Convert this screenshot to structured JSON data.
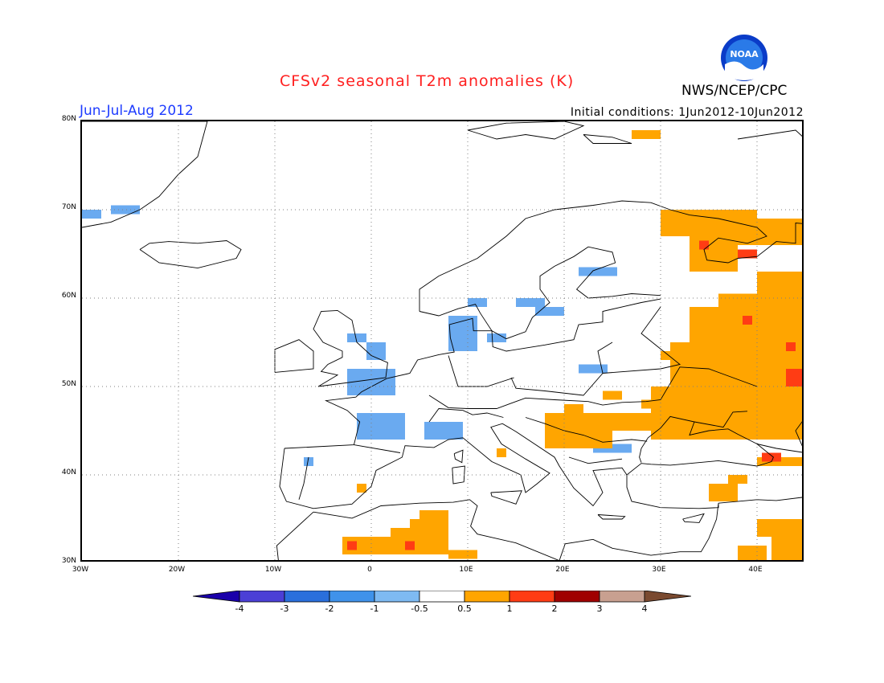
{
  "header": {
    "title": "CFSv2 seasonal T2m anomalies (K)",
    "title_color": "#ff2020",
    "agency": "NWS/NCEP/CPC",
    "season": "Jun-Jul-Aug 2012",
    "initial_conditions": "Initial conditions: 1Jun2012-10Jun2012",
    "logo_text": "NOAA"
  },
  "map": {
    "region": "Europe",
    "lon_range": [
      -30,
      45
    ],
    "lat_range": [
      30,
      80
    ],
    "y_ticks": [
      "80N",
      "70N",
      "60N",
      "50N",
      "40N",
      "30N"
    ],
    "x_ticks": [
      "30W",
      "20W",
      "10W",
      "0",
      "10E",
      "20E",
      "30E",
      "40E"
    ],
    "gridlines": true
  },
  "colorbar": {
    "labels": [
      "-4",
      "-3",
      "-2",
      "-1",
      "-0.5",
      "0.5",
      "1",
      "2",
      "3",
      "4"
    ],
    "colors": [
      "#1a00aa",
      "#4b3fd6",
      "#2a6fdc",
      "#3f92ea",
      "#7ebaf2",
      "#ffffff",
      "#ffa500",
      "#ff3c14",
      "#a00000",
      "#c8a090",
      "#7a4a30"
    ]
  },
  "anomalies": {
    "cool": [
      [
        -30,
        69,
        2,
        1
      ],
      [
        -27,
        69.5,
        3,
        1
      ],
      [
        -2.5,
        55,
        2,
        1
      ],
      [
        -0.5,
        53,
        2,
        2
      ],
      [
        -2.5,
        49,
        5,
        3
      ],
      [
        -1.5,
        44,
        5,
        3
      ],
      [
        5.5,
        44,
        4,
        2
      ],
      [
        8,
        54,
        3,
        2
      ],
      [
        8,
        56,
        3,
        2
      ],
      [
        10,
        59,
        2,
        1
      ],
      [
        15,
        59,
        3,
        1
      ],
      [
        17,
        58,
        3,
        1
      ],
      [
        21.5,
        62.5,
        4,
        1
      ],
      [
        21.5,
        51.5,
        3,
        1
      ],
      [
        23,
        42.5,
        4,
        1
      ],
      [
        12,
        55,
        2,
        1
      ],
      [
        -7,
        41,
        1,
        1
      ]
    ],
    "warm": [
      [
        -3,
        31,
        11,
        2
      ],
      [
        2,
        33,
        6,
        1
      ],
      [
        4,
        34,
        4,
        1
      ],
      [
        5,
        35,
        3,
        1
      ],
      [
        8,
        30.5,
        3,
        1
      ],
      [
        18,
        45,
        11,
        2
      ],
      [
        18,
        43,
        7,
        2
      ],
      [
        20,
        47,
        2,
        1
      ],
      [
        24,
        48.5,
        2,
        1
      ],
      [
        28,
        47.5,
        2,
        1
      ],
      [
        13,
        42,
        1,
        1
      ],
      [
        -1.5,
        38,
        1,
        1
      ],
      [
        29,
        44,
        16,
        6
      ],
      [
        31,
        50,
        14,
        5
      ],
      [
        33,
        55,
        12,
        4
      ],
      [
        36,
        58.5,
        9,
        2
      ],
      [
        33,
        63,
        5,
        6
      ],
      [
        30,
        67,
        10,
        3
      ],
      [
        38,
        66,
        7,
        3
      ],
      [
        40,
        60,
        5,
        3
      ],
      [
        27,
        78,
        3,
        1
      ],
      [
        35,
        37,
        3,
        2
      ],
      [
        37,
        39,
        2,
        1
      ],
      [
        40,
        41,
        5,
        1
      ],
      [
        41.5,
        30,
        3.5,
        4
      ],
      [
        40,
        33,
        5,
        2
      ],
      [
        38,
        30,
        3,
        2
      ],
      [
        30,
        53,
        1,
        1
      ]
    ],
    "hot": [
      [
        -2.5,
        31.5,
        1,
        1
      ],
      [
        3.5,
        31.5,
        1,
        1
      ],
      [
        34,
        65.5,
        1,
        1
      ],
      [
        38,
        64.5,
        1,
        1
      ],
      [
        39,
        64.5,
        1,
        1
      ],
      [
        38.5,
        57,
        1,
        1
      ],
      [
        43,
        54,
        1,
        1
      ],
      [
        43,
        50,
        2,
        2
      ],
      [
        40.5,
        41.5,
        2,
        1
      ]
    ]
  }
}
